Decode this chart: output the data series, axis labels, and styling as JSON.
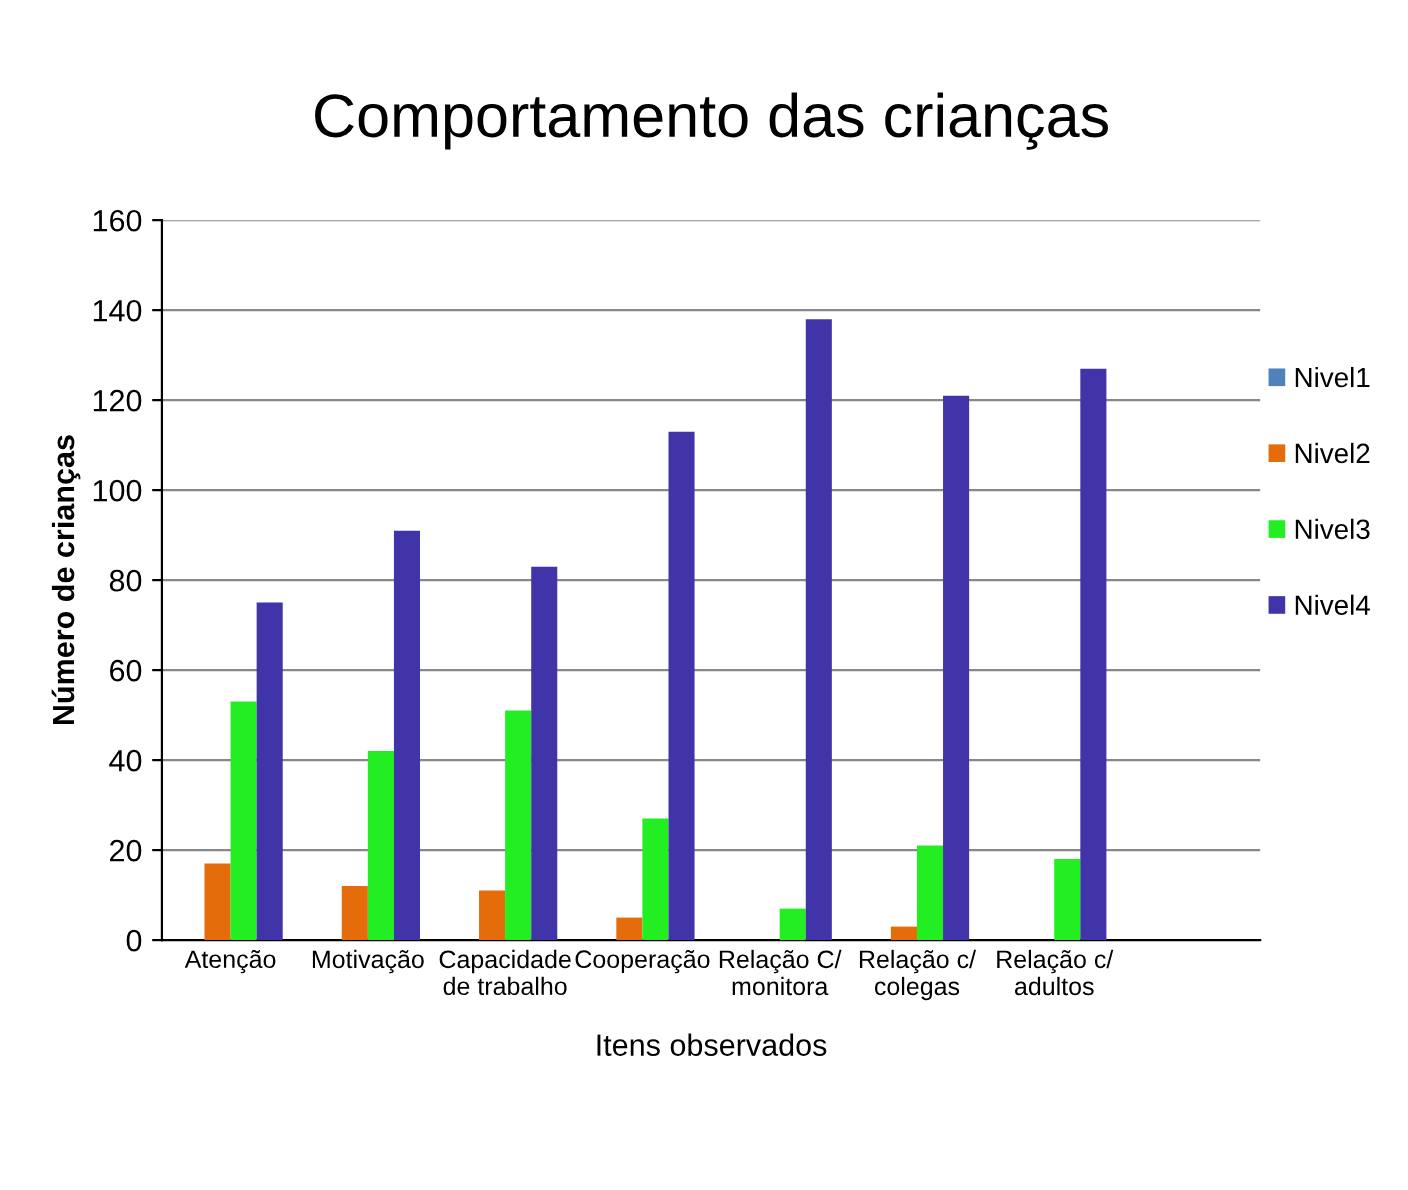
{
  "chart_data": {
    "type": "bar",
    "title": "Comportamento das crianças",
    "xlabel": "Itens observados",
    "ylabel": "Número de crianças",
    "categories": [
      "Atenção",
      "Motivação",
      "Capacidade\nde trabalho",
      "Cooperação",
      "Relação C/\nmonitora",
      "Relação c/\ncolegas",
      "Relação c/\nadultos",
      null
    ],
    "series": [
      {
        "name": "Nivel1",
        "color": "#4f81bd",
        "values": [
          0,
          0,
          0,
          0,
          0,
          0,
          0,
          null
        ]
      },
      {
        "name": "Nivel2",
        "color": "#e46c0a",
        "values": [
          17,
          12,
          11,
          5,
          0,
          3,
          0,
          null
        ]
      },
      {
        "name": "Nivel3",
        "color": "#22ee22",
        "values": [
          53,
          42,
          51,
          27,
          7,
          21,
          18,
          null
        ]
      },
      {
        "name": "Nivel4",
        "color": "#4034a8",
        "values": [
          75,
          91,
          83,
          113,
          138,
          121,
          127,
          null
        ]
      }
    ],
    "ylim": [
      0,
      160
    ],
    "yticks": [
      0,
      20,
      40,
      60,
      80,
      100,
      120,
      140,
      160
    ],
    "grid": "y",
    "legend": "right"
  }
}
